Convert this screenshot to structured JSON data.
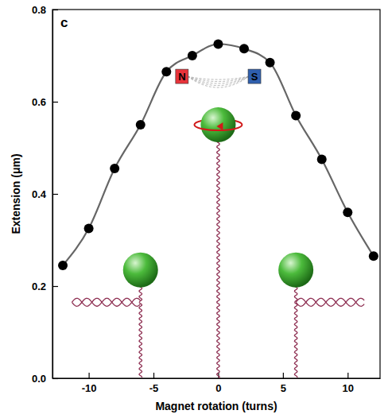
{
  "chart_data": {
    "type": "line",
    "panel_label": "c",
    "x_label": "Magnet rotation (turns)",
    "y_label": "Extension (μm)",
    "annotations": [
      "N",
      "S"
    ],
    "x": [
      -12,
      -10,
      -8,
      -6,
      -4,
      -2,
      0,
      2,
      4,
      6,
      8,
      10,
      12
    ],
    "series": [
      {
        "values": [
          0.245,
          0.325,
          0.455,
          0.55,
          0.665,
          0.7,
          0.725,
          0.715,
          0.685,
          0.57,
          0.475,
          0.36,
          0.265
        ],
        "color": "#000000",
        "marker": "circle",
        "line_style": "solid"
      }
    ],
    "xlim": [
      -12.8,
      12.5
    ],
    "ylim": [
      0,
      0.8
    ],
    "xticks": [
      -10,
      -5,
      0,
      5,
      10
    ],
    "yticks": [
      {
        "value": 0,
        "label": "0.0"
      },
      {
        "value": 0.2,
        "label": "0.2"
      },
      {
        "value": 0.4,
        "label": "0.4"
      },
      {
        "value": 0.6,
        "label": "0.6"
      },
      {
        "value": 0.8,
        "label": "0.8"
      }
    ],
    "grid": false
  }
}
